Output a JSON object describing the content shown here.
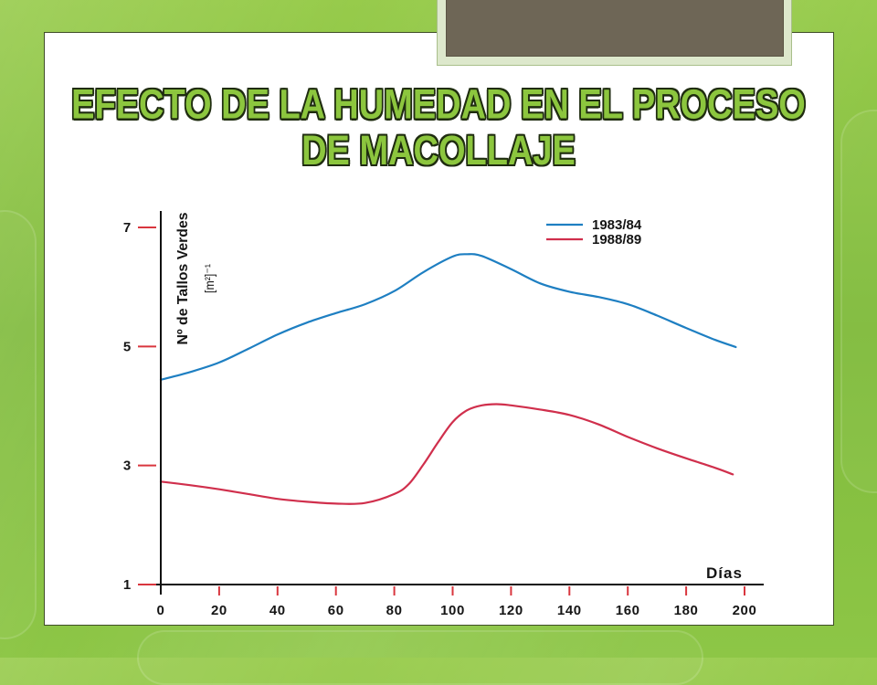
{
  "colors": {
    "title_fill": "#8CC63E",
    "title_outline": "#1F2C10",
    "axis": "#111111",
    "tick_marks": "#D9363E",
    "panel": "#FFFFFF",
    "background": "#86C041",
    "header_block": "#6E6656"
  },
  "chart_data": {
    "type": "line",
    "title": "EFECTO DE LA HUMEDAD EN EL PROCESO DE MACOLLAJE",
    "xlabel": "Días",
    "ylabel": "Nº de Tallos Verdes",
    "ylabel_unit": "[m²]⁻¹",
    "xlim": [
      0,
      200
    ],
    "ylim": [
      1,
      7
    ],
    "xticks": [
      0,
      20,
      40,
      60,
      80,
      100,
      120,
      140,
      160,
      180,
      200
    ],
    "yticks": [
      7,
      5,
      3,
      1
    ],
    "grid": false,
    "legend": "top-right",
    "series": [
      {
        "name": "1983/84",
        "color": "#1E7FC2",
        "x": [
          0,
          10,
          20,
          30,
          40,
          50,
          60,
          70,
          80,
          90,
          100,
          105,
          110,
          120,
          130,
          140,
          150,
          160,
          170,
          180,
          190,
          197
        ],
        "y": [
          4.44,
          4.57,
          4.73,
          4.96,
          5.2,
          5.4,
          5.56,
          5.71,
          5.93,
          6.25,
          6.51,
          6.55,
          6.52,
          6.3,
          6.06,
          5.92,
          5.83,
          5.71,
          5.52,
          5.31,
          5.11,
          4.99
        ]
      },
      {
        "name": "1988/89",
        "color": "#D02F4C",
        "x": [
          0,
          10,
          20,
          30,
          40,
          50,
          60,
          70,
          80,
          85,
          90,
          95,
          100,
          105,
          110,
          115,
          120,
          130,
          140,
          150,
          160,
          170,
          180,
          190,
          196
        ],
        "y": [
          2.73,
          2.67,
          2.6,
          2.52,
          2.44,
          2.39,
          2.36,
          2.37,
          2.52,
          2.69,
          3.02,
          3.39,
          3.73,
          3.93,
          4.01,
          4.03,
          4.01,
          3.94,
          3.85,
          3.69,
          3.48,
          3.29,
          3.12,
          2.96,
          2.85
        ]
      }
    ]
  }
}
